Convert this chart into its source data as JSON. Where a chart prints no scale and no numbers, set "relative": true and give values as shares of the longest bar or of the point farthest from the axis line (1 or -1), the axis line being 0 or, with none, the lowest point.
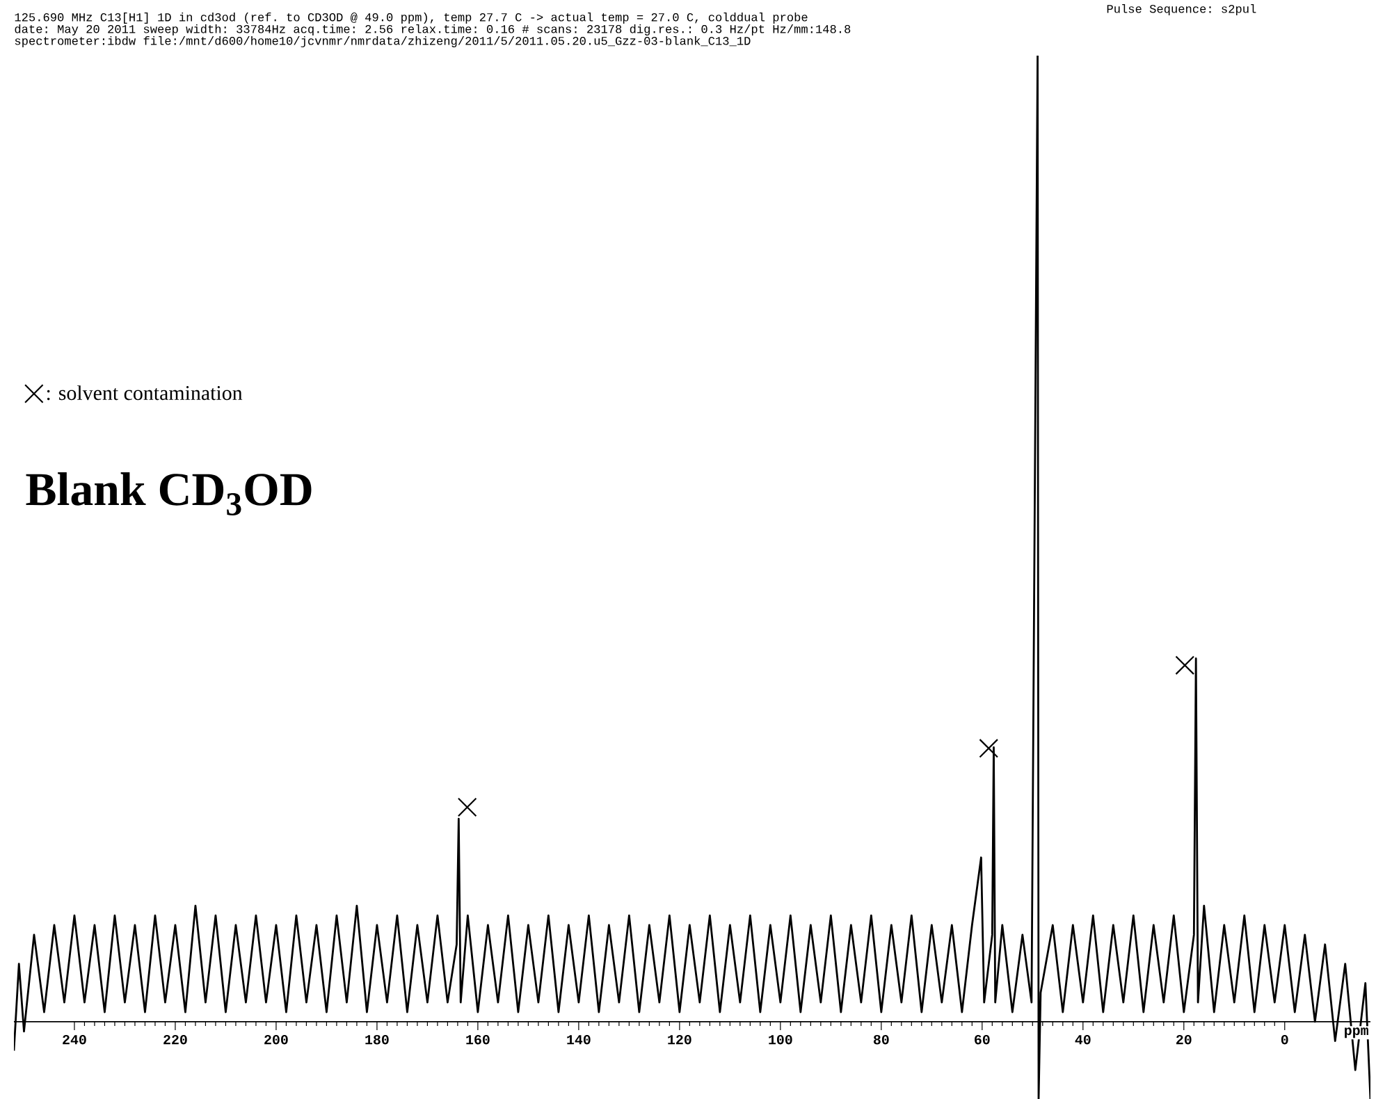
{
  "chart_data": {
    "type": "line",
    "title": "Blank CD$_{3}$OD",
    "xlabel": "ppm",
    "relative": true,
    "legend": "top left",
    "xlim": [
      252,
      -17
    ],
    "xticks": [
      240,
      220,
      200,
      180,
      160,
      140,
      120,
      100,
      80,
      60,
      40,
      20,
      0
    ],
    "annotations": [
      "125.690 MHz C13[H1] 1D in cd3od (ref. to CD3OD @ 49.0 ppm), temp 27.7 C -> actual temp = 27.0 C, colddual probe",
      "date: May 20 2011  sweep width: 33784Hz acq.time: 2.56 relax.time: 0.16  # scans: 23178 dig.res.: 0.3 Hz/pt  Hz/mm:148.8",
      "spectrometer:ibdw     file:/mnt/d600/home10/jcvnmr/nmrdata/zhizeng/2011/5/2011.05.20.u5_Gzz-03-blank_C13_1D",
      "Pulse Sequence: s2pul"
    ],
    "series": [
      {
        "color": "#000000",
        "x": [
          252,
          251,
          250,
          248,
          246,
          244,
          242,
          240,
          238,
          236,
          234,
          232,
          230,
          228,
          226,
          224,
          222,
          220,
          218,
          216,
          214,
          212,
          210,
          208,
          206,
          204,
          202,
          200,
          198,
          196,
          194,
          192,
          190,
          188,
          186,
          184,
          182,
          180,
          178,
          176,
          174,
          172,
          170,
          168,
          166,
          164.2,
          163.8,
          163.4,
          162,
          160,
          158,
          156,
          154,
          152,
          150,
          148,
          146,
          144,
          142,
          140,
          138,
          136,
          134,
          132,
          130,
          128,
          126,
          124,
          122,
          120,
          118,
          116,
          114,
          112,
          110,
          108,
          106,
          104,
          102,
          100,
          98,
          96,
          94,
          92,
          90,
          88,
          86,
          84,
          82,
          80,
          78,
          76,
          74,
          72,
          70,
          68,
          66,
          64,
          62,
          60.2,
          59.6,
          58.0,
          57.7,
          57.4,
          56,
          54,
          52,
          50.2,
          49.0,
          48.8,
          48.4,
          46,
          44,
          42,
          40,
          38,
          36,
          34,
          32,
          30,
          28,
          26,
          24,
          22,
          20,
          18,
          17.6,
          17.2,
          16,
          14,
          12,
          10,
          8,
          6,
          4,
          2,
          0,
          -2,
          -4,
          -6,
          -8,
          -10,
          -12,
          -14,
          -16,
          -17
        ],
        "values": [
          -0.03,
          0.06,
          -0.01,
          0.09,
          0.01,
          0.1,
          0.02,
          0.11,
          0.02,
          0.1,
          0.01,
          0.11,
          0.02,
          0.1,
          0.01,
          0.11,
          0.02,
          0.1,
          0.01,
          0.12,
          0.02,
          0.11,
          0.01,
          0.1,
          0.02,
          0.11,
          0.02,
          0.1,
          0.01,
          0.11,
          0.02,
          0.1,
          0.01,
          0.11,
          0.02,
          0.12,
          0.01,
          0.1,
          0.02,
          0.11,
          0.01,
          0.1,
          0.02,
          0.11,
          0.02,
          0.08,
          0.21,
          0.02,
          0.11,
          0.01,
          0.1,
          0.02,
          0.11,
          0.01,
          0.1,
          0.02,
          0.11,
          0.01,
          0.1,
          0.02,
          0.11,
          0.01,
          0.1,
          0.02,
          0.11,
          0.01,
          0.1,
          0.02,
          0.11,
          0.01,
          0.1,
          0.02,
          0.11,
          0.01,
          0.1,
          0.02,
          0.11,
          0.01,
          0.1,
          0.02,
          0.11,
          0.01,
          0.1,
          0.02,
          0.11,
          0.01,
          0.1,
          0.02,
          0.11,
          0.01,
          0.1,
          0.02,
          0.11,
          0.01,
          0.1,
          0.02,
          0.1,
          0.01,
          0.1,
          0.17,
          0.02,
          0.09,
          0.284,
          0.02,
          0.1,
          0.01,
          0.09,
          0.02,
          1.0,
          -0.08,
          0.03,
          0.1,
          0.01,
          0.1,
          0.02,
          0.11,
          0.01,
          0.1,
          0.02,
          0.11,
          0.01,
          0.1,
          0.02,
          0.11,
          0.01,
          0.09,
          0.376,
          0.02,
          0.12,
          0.01,
          0.1,
          0.02,
          0.11,
          0.01,
          0.1,
          0.02,
          0.1,
          0.01,
          0.09,
          0.0,
          0.08,
          -0.02,
          0.06,
          -0.05,
          0.04,
          -0.08
        ]
      },
      {
        "type": "scatter",
        "name": ": solvent contamination",
        "color": "#000000",
        "marker": "cross",
        "x": [
          162.1,
          58.7,
          19.8
        ],
        "values": [
          0.222,
          0.283,
          0.369
        ]
      }
    ]
  }
}
